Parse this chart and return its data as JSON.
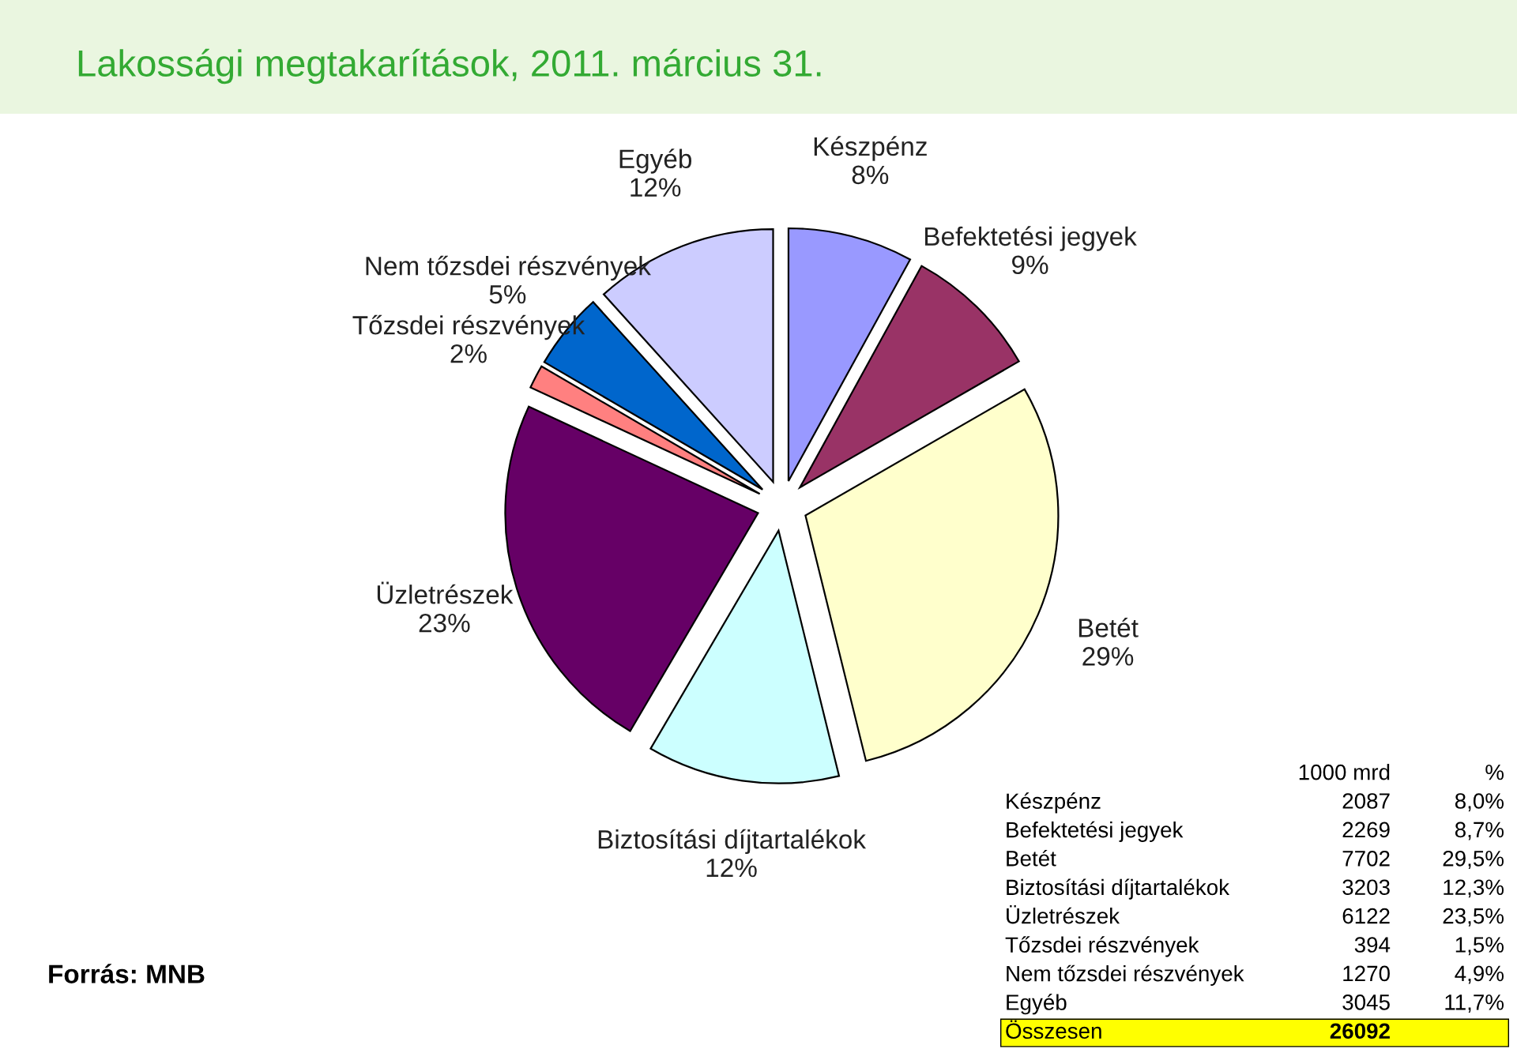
{
  "chart_data": {
    "type": "pie",
    "title": "Lakossági megtakarítások, 2011. március 31.",
    "categories": [
      "Készpénz",
      "Befektetési jegyek",
      "Betét",
      "Biztosítási díjtartalékok",
      "Üzletrészek",
      "Tőzsdei részvények",
      "Nem tőzsdei részvények",
      "Egyéb"
    ],
    "values": [
      8.0,
      8.7,
      29.5,
      12.3,
      23.5,
      1.5,
      4.9,
      11.7
    ],
    "colors": [
      "#9999ff",
      "#993366",
      "#ffffcc",
      "#ccffff",
      "#660066",
      "#ff8080",
      "#0066cc",
      "#ccccff"
    ],
    "value_labels": [
      "8%",
      "9%",
      "29%",
      "12%",
      "23%",
      "2%",
      "5%",
      "12%"
    ],
    "annotations": [
      "Forrás: MNB",
      "1000 mrd",
      "%",
      "2087",
      "8,0%",
      "2269",
      "8,7%",
      "7702",
      "29,5%",
      "3203",
      "12,3%",
      "6122",
      "23,5%",
      "394",
      "1,5%",
      "1270",
      "4,9%",
      "3045",
      "11,7%",
      "Összesen",
      "26092"
    ]
  }
}
